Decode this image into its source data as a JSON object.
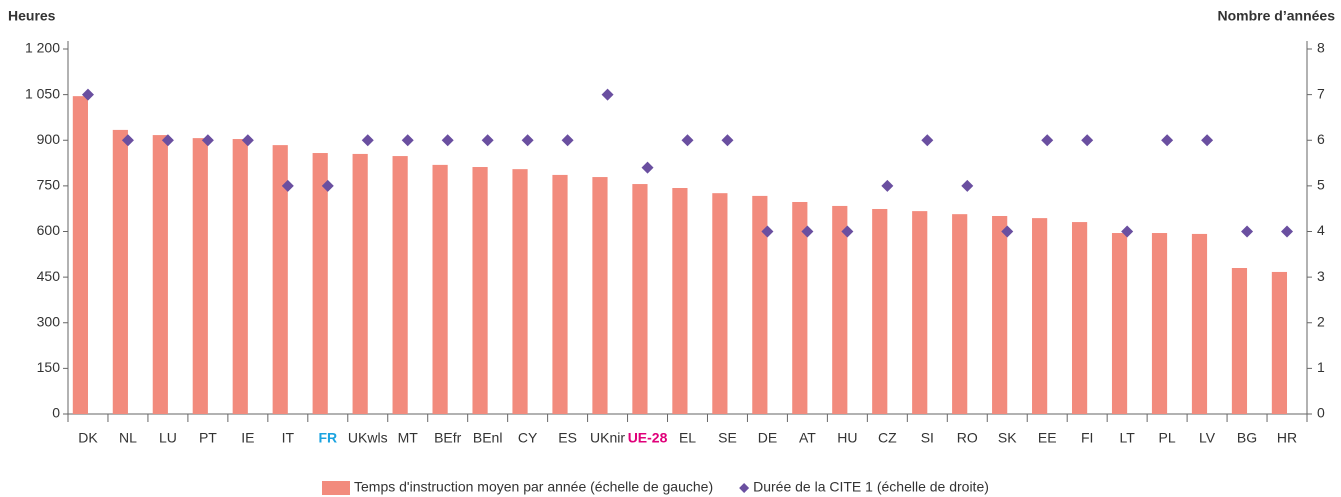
{
  "chart_data": {
    "type": "bar",
    "y_label": "Heures",
    "y2_label": "Nombre d’années",
    "categories": [
      "DK",
      "NL",
      "LU",
      "PT",
      "IE",
      "IT",
      "FR",
      "UKwls",
      "MT",
      "BEfr",
      "BEnl",
      "CY",
      "ES",
      "UKnir",
      "UE-28",
      "EL",
      "SE",
      "DE",
      "AT",
      "HU",
      "CZ",
      "SI",
      "RO",
      "SK",
      "EE",
      "FI",
      "LT",
      "PL",
      "LV",
      "BG",
      "HR"
    ],
    "category_colors": [
      "#333333",
      "#333333",
      "#333333",
      "#333333",
      "#333333",
      "#333333",
      "#1aa3e0",
      "#333333",
      "#333333",
      "#333333",
      "#333333",
      "#333333",
      "#333333",
      "#333333",
      "#e0007a",
      "#333333",
      "#333333",
      "#333333",
      "#333333",
      "#333333",
      "#333333",
      "#333333",
      "#333333",
      "#333333",
      "#333333",
      "#333333",
      "#333333",
      "#333333",
      "#333333",
      "#333333",
      "#333333"
    ],
    "series": [
      {
        "name": "Temps d'instruction moyen par année (échelle de gauche)",
        "type": "bar",
        "color": "#f28b7d",
        "values": [
          1045,
          934,
          917,
          907,
          904,
          884,
          858,
          855,
          848,
          819,
          812,
          805,
          786,
          779,
          756,
          743,
          726,
          717,
          697,
          684,
          674,
          667,
          657,
          651,
          644,
          631,
          595,
          595,
          592,
          480,
          467
        ]
      },
      {
        "name": "Durée de la CITE 1 (échelle de droite)",
        "type": "scatter",
        "marker": "diamond",
        "axis": "y2",
        "color": "#6a4fa0",
        "values": [
          7,
          6,
          6,
          6,
          6,
          5,
          5,
          6,
          6,
          6,
          6,
          6,
          6,
          7,
          5.4,
          6,
          6,
          4,
          4,
          4,
          5,
          6,
          5,
          4,
          6,
          6,
          4,
          6,
          6,
          4,
          4
        ]
      }
    ],
    "ylim": [
      0,
      1200
    ],
    "yticks": [
      0,
      150,
      300,
      450,
      600,
      750,
      900,
      {
        "value": 1050,
        "label": "1 050"
      },
      {
        "value": 1200,
        "label": "1 200"
      }
    ],
    "y2lim": [
      0,
      8
    ],
    "y2ticks": [
      0,
      1,
      2,
      3,
      4,
      5,
      6,
      7,
      8
    ],
    "grid": false,
    "legend": "bottom"
  }
}
